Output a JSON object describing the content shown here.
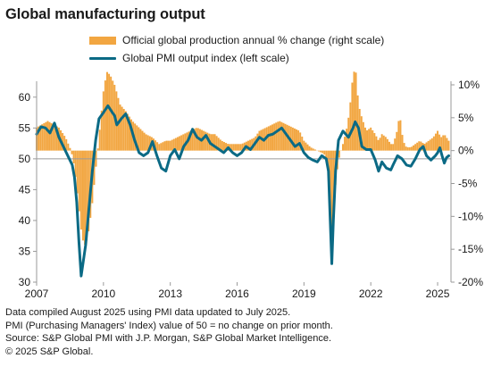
{
  "chart_data": {
    "type": "bar+line",
    "title": "Global manufacturing output",
    "legend": [
      {
        "name": "Official global production annual % change (right scale)",
        "color": "#F2A641",
        "kind": "bar"
      },
      {
        "name": "Global PMI output index (left scale)",
        "color": "#0B6A85",
        "kind": "line"
      }
    ],
    "x_ticks": [
      "2007",
      "2010",
      "2013",
      "2016",
      "2019",
      "2022",
      "2025"
    ],
    "x_range": [
      2007.0,
      2025.6
    ],
    "left_axis": {
      "ticks": [
        "60",
        "55",
        "50",
        "45",
        "40",
        "35",
        "30"
      ],
      "ylim": [
        30,
        62
      ]
    },
    "right_axis": {
      "ticks": [
        "10%",
        "5%",
        "0%",
        "-5%",
        "-10%",
        "-15%",
        "-20%"
      ],
      "ylim": [
        -20,
        10
      ]
    },
    "baseline_left": 50,
    "pmi_series": {
      "name": "Global PMI output index (left scale)",
      "points": [
        [
          2007.0,
          54.0
        ],
        [
          2007.2,
          55.2
        ],
        [
          2007.4,
          55.0
        ],
        [
          2007.6,
          54.2
        ],
        [
          2007.8,
          55.8
        ],
        [
          2008.0,
          53.5
        ],
        [
          2008.2,
          52.0
        ],
        [
          2008.4,
          50.5
        ],
        [
          2008.6,
          49.0
        ],
        [
          2008.7,
          47.0
        ],
        [
          2008.8,
          43.0
        ],
        [
          2008.9,
          36.5
        ],
        [
          2009.0,
          31.0
        ],
        [
          2009.1,
          33.5
        ],
        [
          2009.2,
          36.0
        ],
        [
          2009.35,
          42.0
        ],
        [
          2009.5,
          48.0
        ],
        [
          2009.65,
          53.0
        ],
        [
          2009.8,
          56.5
        ],
        [
          2010.0,
          57.5
        ],
        [
          2010.2,
          58.6
        ],
        [
          2010.4,
          57.5
        ],
        [
          2010.5,
          57.0
        ],
        [
          2010.6,
          55.5
        ],
        [
          2010.8,
          56.5
        ],
        [
          2011.0,
          57.3
        ],
        [
          2011.2,
          55.5
        ],
        [
          2011.4,
          53.0
        ],
        [
          2011.6,
          51.0
        ],
        [
          2011.8,
          50.5
        ],
        [
          2012.0,
          51.0
        ],
        [
          2012.2,
          52.8
        ],
        [
          2012.4,
          50.5
        ],
        [
          2012.6,
          48.5
        ],
        [
          2012.8,
          48.0
        ],
        [
          2013.0,
          50.5
        ],
        [
          2013.2,
          51.5
        ],
        [
          2013.4,
          50.0
        ],
        [
          2013.6,
          52.0
        ],
        [
          2013.8,
          53.0
        ],
        [
          2014.0,
          54.8
        ],
        [
          2014.2,
          53.5
        ],
        [
          2014.4,
          53.0
        ],
        [
          2014.6,
          53.8
        ],
        [
          2014.8,
          52.5
        ],
        [
          2015.0,
          52.0
        ],
        [
          2015.2,
          51.5
        ],
        [
          2015.4,
          51.0
        ],
        [
          2015.6,
          51.8
        ],
        [
          2015.8,
          51.0
        ],
        [
          2016.0,
          50.5
        ],
        [
          2016.2,
          51.0
        ],
        [
          2016.4,
          52.0
        ],
        [
          2016.6,
          51.5
        ],
        [
          2016.8,
          52.5
        ],
        [
          2017.0,
          53.5
        ],
        [
          2017.2,
          53.0
        ],
        [
          2017.4,
          53.8
        ],
        [
          2017.6,
          54.0
        ],
        [
          2017.8,
          54.5
        ],
        [
          2018.0,
          55.0
        ],
        [
          2018.2,
          54.0
        ],
        [
          2018.4,
          53.0
        ],
        [
          2018.6,
          52.0
        ],
        [
          2018.8,
          52.5
        ],
        [
          2019.0,
          51.0
        ],
        [
          2019.2,
          50.2
        ],
        [
          2019.4,
          49.8
        ],
        [
          2019.6,
          49.5
        ],
        [
          2019.8,
          50.5
        ],
        [
          2020.0,
          50.0
        ],
        [
          2020.1,
          48.0
        ],
        [
          2020.18,
          40.0
        ],
        [
          2020.25,
          33.0
        ],
        [
          2020.32,
          40.0
        ],
        [
          2020.42,
          48.0
        ],
        [
          2020.55,
          53.0
        ],
        [
          2020.75,
          54.5
        ],
        [
          2021.0,
          53.5
        ],
        [
          2021.2,
          55.0
        ],
        [
          2021.3,
          56.0
        ],
        [
          2021.45,
          55.0
        ],
        [
          2021.6,
          52.0
        ],
        [
          2021.8,
          51.5
        ],
        [
          2022.0,
          51.5
        ],
        [
          2022.2,
          49.8
        ],
        [
          2022.35,
          48.0
        ],
        [
          2022.5,
          49.5
        ],
        [
          2022.7,
          48.5
        ],
        [
          2022.9,
          48.2
        ],
        [
          2023.0,
          49.0
        ],
        [
          2023.2,
          50.5
        ],
        [
          2023.4,
          50.0
        ],
        [
          2023.6,
          49.0
        ],
        [
          2023.8,
          48.8
        ],
        [
          2024.0,
          50.0
        ],
        [
          2024.2,
          51.5
        ],
        [
          2024.35,
          52.0
        ],
        [
          2024.5,
          50.5
        ],
        [
          2024.7,
          49.8
        ],
        [
          2024.9,
          50.5
        ],
        [
          2025.0,
          51.0
        ],
        [
          2025.1,
          51.8
        ],
        [
          2025.2,
          50.5
        ],
        [
          2025.3,
          49.3
        ],
        [
          2025.4,
          50.2
        ],
        [
          2025.5,
          50.5
        ]
      ]
    },
    "production_series": {
      "name": "Official global production annual % change (right scale)",
      "points": [
        [
          2007.0,
          3.5
        ],
        [
          2007.5,
          4.5
        ],
        [
          2008.0,
          3.5
        ],
        [
          2008.3,
          2.0
        ],
        [
          2008.55,
          0.0
        ],
        [
          2008.7,
          -2.5
        ],
        [
          2008.85,
          -7.0
        ],
        [
          2009.0,
          -12.0
        ],
        [
          2009.1,
          -14.0
        ],
        [
          2009.2,
          -14.5
        ],
        [
          2009.35,
          -12.0
        ],
        [
          2009.5,
          -8.0
        ],
        [
          2009.65,
          -3.0
        ],
        [
          2009.8,
          2.0
        ],
        [
          2010.0,
          9.0
        ],
        [
          2010.15,
          12.0
        ],
        [
          2010.3,
          11.5
        ],
        [
          2010.5,
          10.0
        ],
        [
          2010.75,
          7.0
        ],
        [
          2011.0,
          6.0
        ],
        [
          2011.3,
          4.5
        ],
        [
          2011.6,
          3.5
        ],
        [
          2011.9,
          2.5
        ],
        [
          2012.2,
          2.0
        ],
        [
          2012.5,
          1.0
        ],
        [
          2012.8,
          1.5
        ],
        [
          2013.0,
          1.5
        ],
        [
          2013.3,
          2.0
        ],
        [
          2013.6,
          2.5
        ],
        [
          2013.9,
          3.0
        ],
        [
          2014.2,
          3.5
        ],
        [
          2014.5,
          3.0
        ],
        [
          2014.8,
          2.5
        ],
        [
          2015.0,
          2.5
        ],
        [
          2015.3,
          1.5
        ],
        [
          2015.6,
          1.0
        ],
        [
          2015.9,
          1.0
        ],
        [
          2016.2,
          1.0
        ],
        [
          2016.5,
          1.5
        ],
        [
          2016.8,
          2.0
        ],
        [
          2017.0,
          3.0
        ],
        [
          2017.3,
          3.5
        ],
        [
          2017.6,
          4.0
        ],
        [
          2017.9,
          4.5
        ],
        [
          2018.2,
          4.0
        ],
        [
          2018.5,
          3.5
        ],
        [
          2018.8,
          3.0
        ],
        [
          2019.0,
          1.5
        ],
        [
          2019.3,
          0.5
        ],
        [
          2019.6,
          0.0
        ],
        [
          2019.9,
          -0.5
        ],
        [
          2020.05,
          -1.5
        ],
        [
          2020.15,
          -6.0
        ],
        [
          2020.25,
          -13.0
        ],
        [
          2020.33,
          -10.0
        ],
        [
          2020.42,
          -5.0
        ],
        [
          2020.55,
          -1.5
        ],
        [
          2020.75,
          1.0
        ],
        [
          2020.9,
          3.0
        ],
        [
          2021.05,
          6.0
        ],
        [
          2021.15,
          10.0
        ],
        [
          2021.25,
          12.0
        ],
        [
          2021.33,
          12.0
        ],
        [
          2021.45,
          7.0
        ],
        [
          2021.6,
          5.0
        ],
        [
          2021.8,
          3.0
        ],
        [
          2022.0,
          3.5
        ],
        [
          2022.2,
          2.5
        ],
        [
          2022.35,
          1.5
        ],
        [
          2022.5,
          2.5
        ],
        [
          2022.7,
          2.0
        ],
        [
          2022.9,
          1.0
        ],
        [
          2023.0,
          1.0
        ],
        [
          2023.15,
          2.5
        ],
        [
          2023.3,
          5.5
        ],
        [
          2023.45,
          1.5
        ],
        [
          2023.6,
          0.5
        ],
        [
          2023.8,
          0.5
        ],
        [
          2024.0,
          1.0
        ],
        [
          2024.2,
          1.5
        ],
        [
          2024.4,
          1.0
        ],
        [
          2024.6,
          1.5
        ],
        [
          2024.8,
          2.0
        ],
        [
          2025.0,
          3.0
        ],
        [
          2025.15,
          2.0
        ],
        [
          2025.3,
          2.5
        ],
        [
          2025.5,
          1.5
        ]
      ]
    },
    "grid": false
  },
  "notes": [
    "Data compiled August 2025 using PMI data updated to July 2025.",
    "PMI (Purchasing Managers' Index) value of 50 = no change on prior month.",
    "Source: S&P Global PMI with J.P. Morgan, S&P Global Market Intelligence.",
    "© 2025 S&P Global."
  ]
}
